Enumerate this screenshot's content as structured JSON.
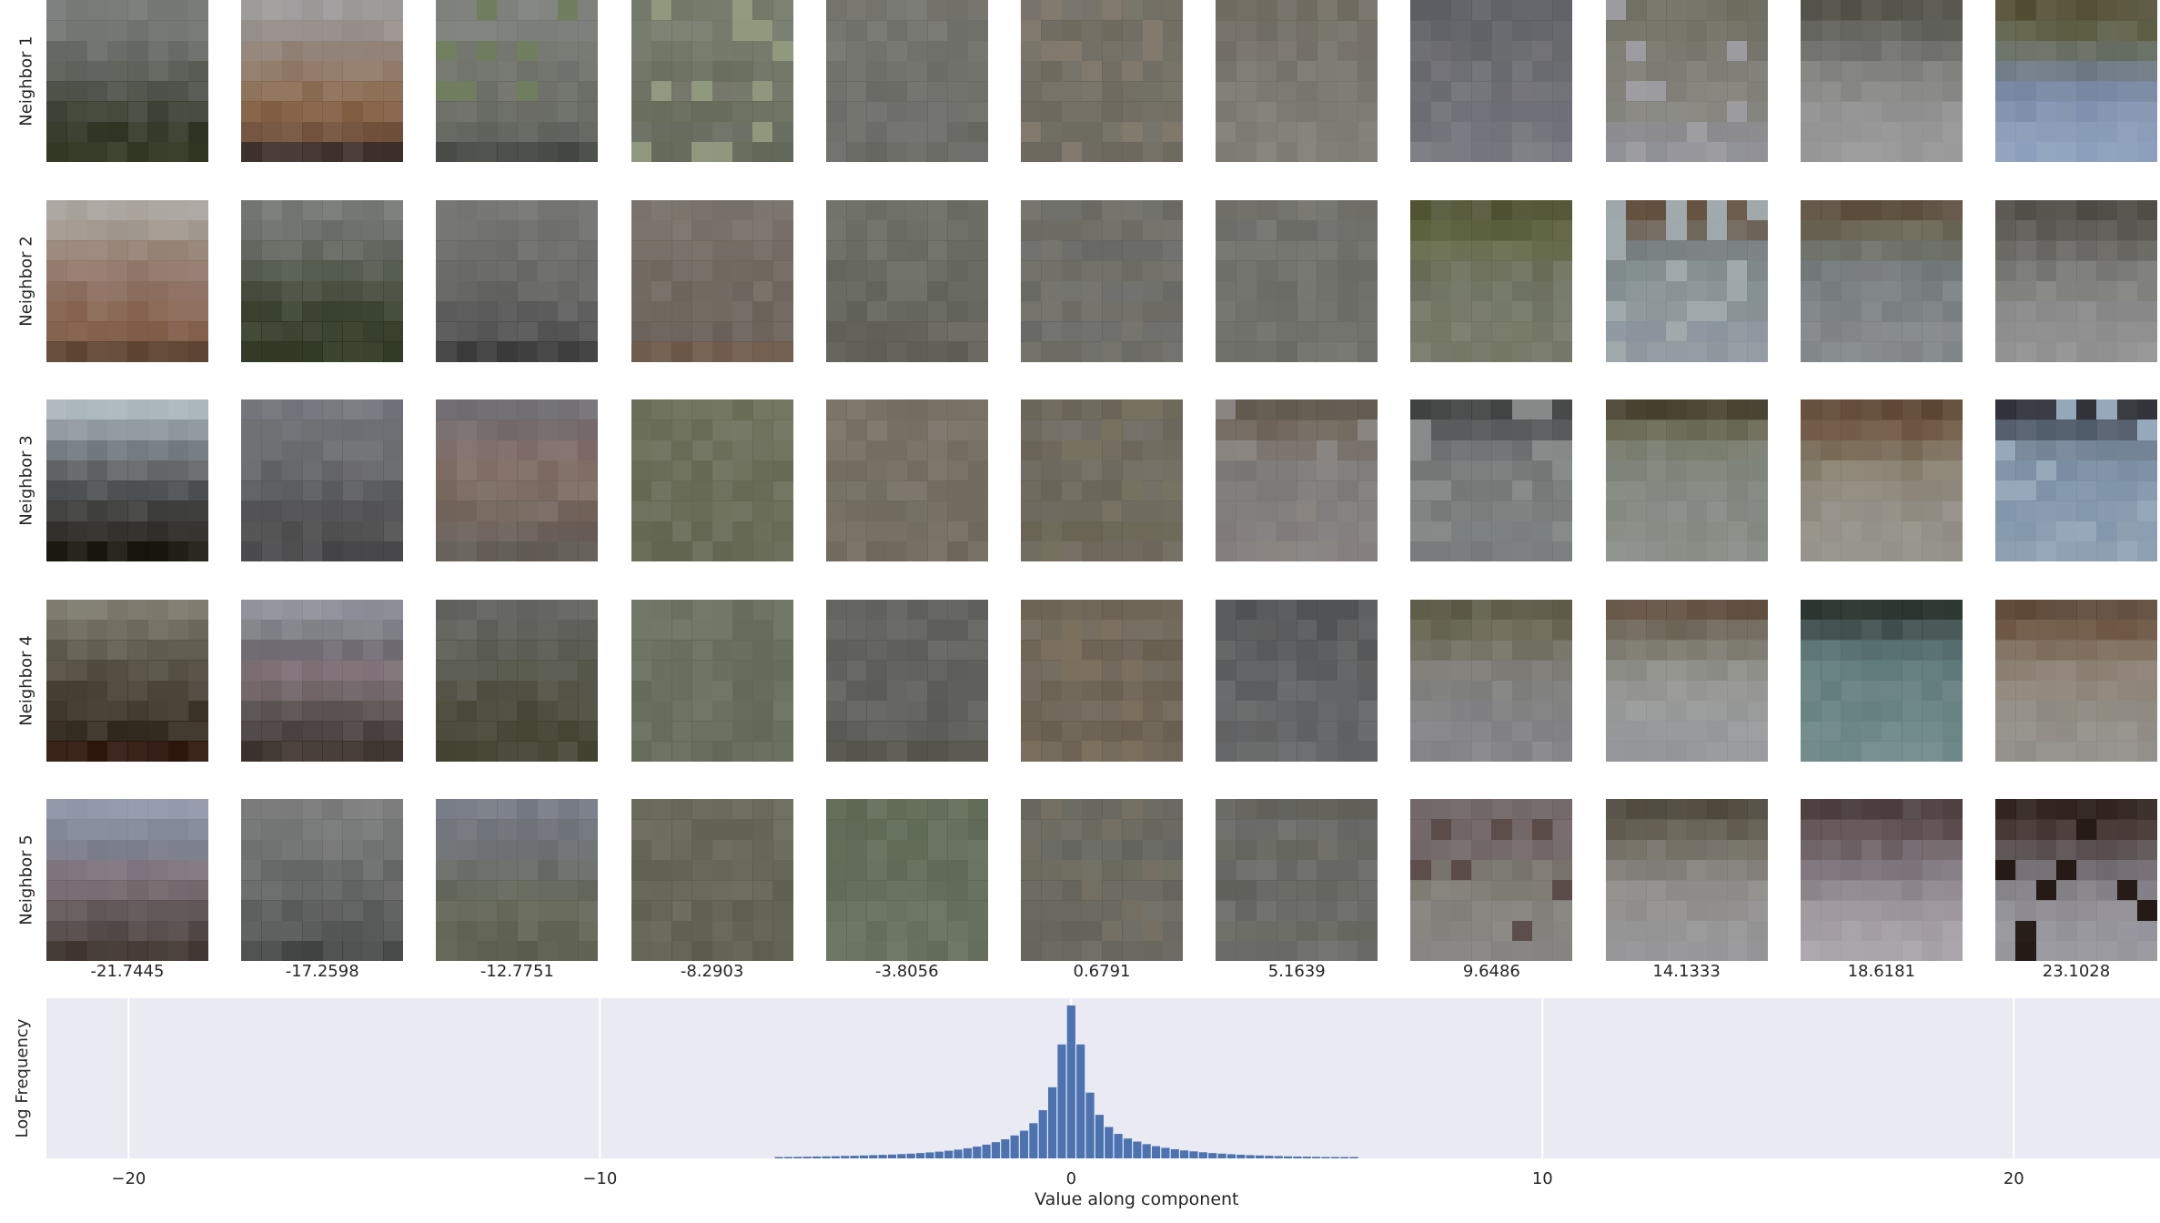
{
  "neighbors": {
    "row_labels": [
      "Neighbor 1",
      "Neighbor 2",
      "Neighbor 3",
      "Neighbor 4",
      "Neighbor 5"
    ],
    "column_values": [
      "-21.7445",
      "-17.2598",
      "-12.7751",
      "-8.2903",
      "-3.8056",
      "0.6791",
      "5.1639",
      "9.6486",
      "14.1333",
      "18.6181",
      "23.1028"
    ],
    "tiles": [
      [
        {
          "rows": [
            "#727673",
            "#6c716d",
            "#636762",
            "#575b54",
            "#4a4e45",
            "#3c4033",
            "#2f3422",
            "#2b311c"
          ]
        },
        {
          "rows": [
            "#9a9897",
            "#958d89",
            "#8f7f74",
            "#8c7462",
            "#88694f",
            "#805c40",
            "#6f4e37",
            "#3a2c27"
          ]
        },
        {
          "rows": [
            "#7a7c77",
            "#767873",
            "#71746d",
            "#6c6f68",
            "#686b63",
            "#62655d",
            "#5b5e57",
            "#3e423c"
          ],
          "noise": "#6f7d5e"
        },
        {
          "rows": [
            "#6f7563",
            "#727868",
            "#6b7060",
            "#666b5b",
            "#6a6e5f",
            "#646957",
            "#62685a",
            "#5f6555"
          ],
          "noise": "#8f977d"
        },
        {
          "rows": [
            "#707069",
            "#6e6e68",
            "#6c6d66",
            "#6b6c65",
            "#6a6a64",
            "#686963",
            "#676762",
            "#656560"
          ]
        },
        {
          "rows": [
            "#6e6a60",
            "#6b665a",
            "#6d695e",
            "#6a6559",
            "#6c685d",
            "#69655a",
            "#6b675c",
            "#686459"
          ],
          "noise": "#80786b"
        },
        {
          "rows": [
            "#6f6a60",
            "#6e6a61",
            "#726e66",
            "#747169",
            "#76736b",
            "#79766e",
            "#7b7870",
            "#7d7a72"
          ]
        },
        {
          "rows": [
            "#5c5d63",
            "#606167",
            "#646569",
            "#67686e",
            "#6a6b71",
            "#6c6d74",
            "#6f7077",
            "#72737a"
          ]
        },
        {
          "rows": [
            "#6a6a5d",
            "#6e6e62",
            "#727268",
            "#78786f",
            "#7d7d75",
            "#82827b",
            "#88888a",
            "#8c8c93"
          ],
          "noise": "#9c9ca0"
        },
        {
          "rows": [
            "#4e4d44",
            "#5e5e58",
            "#6c6c68",
            "#7a7a77",
            "#858584",
            "#8d8d8d",
            "#929292",
            "#959595"
          ]
        },
        {
          "rows": [
            "#514d33",
            "#585b40",
            "#60675c",
            "#6a7581",
            "#7585a0",
            "#7e90ad",
            "#8699b6",
            "#8b9fbc"
          ]
        }
      ],
      [
        {
          "rows": [
            "#a7a19a",
            "#9e948b",
            "#937f72",
            "#8e7466",
            "#896a5a",
            "#85624f",
            "#7f5a45",
            "#5c4330"
          ]
        },
        {
          "rows": [
            "#6f7471",
            "#676c66",
            "#5d635a",
            "#50574b",
            "#434a3a",
            "#37402c",
            "#2e3722",
            "#2a331d"
          ]
        },
        {
          "rows": [
            "#71716f",
            "#6d6d6b",
            "#686867",
            "#636362",
            "#5e5e5d",
            "#585858",
            "#4f4f4f",
            "#393939"
          ]
        },
        {
          "rows": [
            "#756e66",
            "#736b63",
            "#706860",
            "#6e665d",
            "#6c645b",
            "#6a6259",
            "#686058",
            "#6a5646"
          ]
        },
        {
          "rows": [
            "#68695f",
            "#66675d",
            "#65665c",
            "#63645a",
            "#626358",
            "#606157",
            "#5f5f55",
            "#5d5d53"
          ]
        },
        {
          "rows": [
            "#66665f",
            "#68685f",
            "#646560",
            "#696960",
            "#656660",
            "#686860",
            "#656561",
            "#676760"
          ],
          "noise": "#74746c"
        },
        {
          "rows": [
            "#6d6d66",
            "#6a6b65",
            "#6c6c66",
            "#696a64",
            "#6b6b65",
            "#6a6a64",
            "#6c6c66",
            "#6b6b65"
          ]
        },
        {
          "rows": [
            "#4d5130",
            "#575c38",
            "#626747",
            "#676b55",
            "#6a6e5b",
            "#6e725f",
            "#717461",
            "#727562"
          ]
        },
        {
          "rows": [
            "#5e4a38",
            "#6a6054",
            "#737a7b",
            "#7c8788",
            "#828d90",
            "#858f92",
            "#89929b",
            "#8c949b"
          ],
          "noise": "#9ea8ab"
        },
        {
          "rows": [
            "#5a4b3a",
            "#65604f",
            "#6b6d66",
            "#707576",
            "#757b7d",
            "#787e80",
            "#7c8184",
            "#7f8487"
          ]
        },
        {
          "rows": [
            "#4c4942",
            "#56554f",
            "#65645f",
            "#73736f",
            "#7f7f7c",
            "#868686",
            "#8b8b8b",
            "#8e8e8e"
          ]
        }
      ],
      [
        {
          "rows": [
            "#a9b4bb",
            "#8d969d",
            "#6f777d",
            "#5d6164",
            "#4a4d4f",
            "#3b3c3a",
            "#2c2b25",
            "#121208"
          ]
        },
        {
          "rows": [
            "#6e7077",
            "#6a6c71",
            "#65676a",
            "#5f6062",
            "#58595b",
            "#525254",
            "#4b4b4c",
            "#444446"
          ]
        },
        {
          "rows": [
            "#6d6b70",
            "#716769",
            "#7a6763",
            "#7b685f",
            "#77665c",
            "#6f6158",
            "#675c55",
            "#5d5650"
          ]
        },
        {
          "rows": [
            "#686c55",
            "#676b55",
            "#666a54",
            "#656953",
            "#646852",
            "#636751",
            "#626650",
            "#61654f"
          ]
        },
        {
          "rows": [
            "#726b5f",
            "#736c60",
            "#726b5f",
            "#716a5e",
            "#706a5e",
            "#6f695d",
            "#6e685c",
            "#6d675b"
          ]
        },
        {
          "rows": [
            "#645f50",
            "#69645a",
            "#655f52",
            "#6b665b",
            "#666255",
            "#6a6559",
            "#65604f",
            "#686355"
          ],
          "noise": "#76705f"
        },
        {
          "rows": [
            "#5c5449",
            "#6a6056",
            "#746c65",
            "#777371",
            "#7a7674",
            "#7b7776",
            "#7d7877",
            "#7f7a78"
          ],
          "noise": "#898480"
        },
        {
          "rows": [
            "#3a3c3c",
            "#545758",
            "#686b6c",
            "#6f7372",
            "#717574",
            "#737775",
            "#737878",
            "#717575"
          ],
          "noise": "#858a88"
        },
        {
          "rows": [
            "#473f2d",
            "#65644f",
            "#767a6c",
            "#7c8177",
            "#7f847c",
            "#81867f",
            "#838880",
            "#858a83"
          ]
        },
        {
          "rows": [
            "#5b4430",
            "#6c5440",
            "#786956",
            "#857c6b",
            "#8c8578",
            "#8e897f",
            "#908c83",
            "#918e86"
          ]
        },
        {
          "rows": [
            "#2a2c33",
            "#4d5867",
            "#6f8093",
            "#768aa0",
            "#7b90a6",
            "#7e93a9",
            "#8196aa",
            "#8499ac"
          ],
          "noise": "#94a8ba"
        }
      ],
      [
        {
          "rows": [
            "#7a7769",
            "#6a6658",
            "#5c5849",
            "#4f4a3b",
            "#433d2f",
            "#3a3225",
            "#30271b",
            "#2a1208"
          ]
        },
        {
          "rows": [
            "#8a8c96",
            "#7c7c84",
            "#6e6a71",
            "#7a6b71",
            "#6b5f62",
            "#574e4e",
            "#473f3d",
            "#3a302b"
          ]
        },
        {
          "rows": [
            "#5f605b",
            "#5a5b54",
            "#55564d",
            "#505145",
            "#4b4c3e",
            "#464737",
            "#424331",
            "#3e3f2c"
          ]
        },
        {
          "rows": [
            "#646b58",
            "#646b58",
            "#636a57",
            "#636a57",
            "#626956",
            "#626956",
            "#616855",
            "#606754"
          ]
        },
        {
          "rows": [
            "#5e5e5b",
            "#5d5d5a",
            "#5c5c59",
            "#5b5b58",
            "#5a5a57",
            "#595956",
            "#585855",
            "#505048"
          ]
        },
        {
          "rows": [
            "#665c4d",
            "#6a6152",
            "#645a4b",
            "#6b6254",
            "#655b4c",
            "#6a6052",
            "#645a4b",
            "#695f50"
          ],
          "noise": "#7a6e5c"
        },
        {
          "rows": [
            "#4f5051",
            "#525354",
            "#555657",
            "#58595a",
            "#5b5c5d",
            "#5d5e5f",
            "#5f6061",
            "#606162"
          ]
        },
        {
          "rows": [
            "#5b5944",
            "#65634e",
            "#6f6e60",
            "#777670",
            "#7b7b7a",
            "#7e7e80",
            "#7f7f83",
            "#808085"
          ]
        },
        {
          "rows": [
            "#5c4a3a",
            "#6b6354",
            "#7c7a6f",
            "#8a8a84",
            "#929390",
            "#949595",
            "#939597",
            "#919397"
          ]
        },
        {
          "rows": [
            "#243029",
            "#3b4d4b",
            "#526b6c",
            "#5d7878",
            "#637d7e",
            "#658080",
            "#678282",
            "#6a8485"
          ]
        },
        {
          "rows": [
            "#5b4534",
            "#6d5643",
            "#7c6b5a",
            "#877b6d",
            "#8b8276",
            "#8c877e",
            "#8e8a83",
            "#8f8c87"
          ]
        }
      ],
      [
        {
          "rows": [
            "#8d94a6",
            "#828898",
            "#777b88",
            "#7a6f7a",
            "#6f6268",
            "#5d5254",
            "#4c4240",
            "#3c312b"
          ]
        },
        {
          "rows": [
            "#777877",
            "#717272",
            "#6b6c6c",
            "#646565",
            "#5e5f5f",
            "#575858",
            "#505151",
            "#414242"
          ]
        },
        {
          "rows": [
            "#707580",
            "#6c7077",
            "#676a6c",
            "#636661",
            "#616458",
            "#5f6253",
            "#5c5f4f",
            "#595c4c"
          ]
        },
        {
          "rows": [
            "#626252",
            "#626252",
            "#616151",
            "#606050",
            "#5f5f4f",
            "#5e5e4e",
            "#5d5d4d",
            "#5c5c4c"
          ]
        },
        {
          "rows": [
            "#5b6650",
            "#5c6752",
            "#5e6853",
            "#5e6854",
            "#5f6955",
            "#5f6955",
            "#606a56",
            "#616b57"
          ]
        },
        {
          "rows": [
            "#5f5e56",
            "#646359",
            "#60605a",
            "#666558",
            "#616058",
            "#65645a",
            "#605f57",
            "#636259"
          ],
          "noise": "#726f62"
        },
        {
          "rows": [
            "#5e5e57",
            "#646560",
            "#606159",
            "#666762",
            "#5f605a",
            "#656661",
            "#616259",
            "#676863"
          ]
        },
        {
          "rows": [
            "#6e6363",
            "#6c5f60",
            "#6e6362",
            "#747068",
            "#7b7870",
            "#7e7c76",
            "#807e79",
            "#817f7c"
          ],
          "noise": "#5a4a48"
        },
        {
          "rows": [
            "#4c463b",
            "#605b4e",
            "#726e64",
            "#807c77",
            "#8a8784",
            "#8f8d8c",
            "#929192",
            "#939396"
          ]
        },
        {
          "rows": [
            "#4a3c3c",
            "#5a4a4d",
            "#6a5e63",
            "#7b7279",
            "#8b8489",
            "#979095",
            "#a09a9f",
            "#a6a1a7"
          ]
        },
        {
          "rows": [
            "#2c1f1b",
            "#3e302d",
            "#544a4c",
            "#6b646a",
            "#7e7b82",
            "#8a878f",
            "#918f97",
            "#95939a"
          ],
          "noise": "#241915"
        }
      ]
    ]
  },
  "chart_data": {
    "type": "bar",
    "xlabel": "Value along component",
    "ylabel": "Log Frequency",
    "xlim": [
      -21.7445,
      23.1028
    ],
    "xticks": [
      "−20",
      "−10",
      "0",
      "10",
      "20"
    ],
    "xtick_values": [
      -20,
      -10,
      0,
      10,
      20
    ],
    "grid": true,
    "bar_color": "#4c72b0",
    "background": "#eaeaf2",
    "bin_width": 0.2,
    "bins": [
      {
        "x": -6.2,
        "y": 0.008
      },
      {
        "x": -6.0,
        "y": 0.009
      },
      {
        "x": -5.8,
        "y": 0.01
      },
      {
        "x": -5.6,
        "y": 0.011
      },
      {
        "x": -5.4,
        "y": 0.012
      },
      {
        "x": -5.2,
        "y": 0.013
      },
      {
        "x": -5.0,
        "y": 0.014
      },
      {
        "x": -4.8,
        "y": 0.016
      },
      {
        "x": -4.6,
        "y": 0.017
      },
      {
        "x": -4.4,
        "y": 0.019
      },
      {
        "x": -4.2,
        "y": 0.021
      },
      {
        "x": -4.0,
        "y": 0.023
      },
      {
        "x": -3.8,
        "y": 0.025
      },
      {
        "x": -3.6,
        "y": 0.028
      },
      {
        "x": -3.4,
        "y": 0.031
      },
      {
        "x": -3.2,
        "y": 0.035
      },
      {
        "x": -3.0,
        "y": 0.039
      },
      {
        "x": -2.8,
        "y": 0.044
      },
      {
        "x": -2.6,
        "y": 0.05
      },
      {
        "x": -2.4,
        "y": 0.057
      },
      {
        "x": -2.2,
        "y": 0.066
      },
      {
        "x": -2.0,
        "y": 0.077
      },
      {
        "x": -1.8,
        "y": 0.09
      },
      {
        "x": -1.6,
        "y": 0.106
      },
      {
        "x": -1.4,
        "y": 0.125
      },
      {
        "x": -1.2,
        "y": 0.15
      },
      {
        "x": -1.0,
        "y": 0.181
      },
      {
        "x": -0.8,
        "y": 0.23
      },
      {
        "x": -0.6,
        "y": 0.315
      },
      {
        "x": -0.4,
        "y": 0.465
      },
      {
        "x": -0.2,
        "y": 0.745
      },
      {
        "x": 0.0,
        "y": 1.0
      },
      {
        "x": 0.2,
        "y": 0.745
      },
      {
        "x": 0.4,
        "y": 0.43
      },
      {
        "x": 0.6,
        "y": 0.285
      },
      {
        "x": 0.8,
        "y": 0.205
      },
      {
        "x": 1.0,
        "y": 0.16
      },
      {
        "x": 1.2,
        "y": 0.13
      },
      {
        "x": 1.4,
        "y": 0.11
      },
      {
        "x": 1.6,
        "y": 0.093
      },
      {
        "x": 1.8,
        "y": 0.08
      },
      {
        "x": 2.0,
        "y": 0.069
      },
      {
        "x": 2.2,
        "y": 0.06
      },
      {
        "x": 2.4,
        "y": 0.052
      },
      {
        "x": 2.6,
        "y": 0.046
      },
      {
        "x": 2.8,
        "y": 0.04
      },
      {
        "x": 3.0,
        "y": 0.035
      },
      {
        "x": 3.2,
        "y": 0.031
      },
      {
        "x": 3.4,
        "y": 0.027
      },
      {
        "x": 3.6,
        "y": 0.024
      },
      {
        "x": 3.8,
        "y": 0.021
      },
      {
        "x": 4.0,
        "y": 0.019
      },
      {
        "x": 4.2,
        "y": 0.017
      },
      {
        "x": 4.4,
        "y": 0.015
      },
      {
        "x": 4.6,
        "y": 0.013
      },
      {
        "x": 4.8,
        "y": 0.012
      },
      {
        "x": 5.0,
        "y": 0.011
      },
      {
        "x": 5.2,
        "y": 0.01
      },
      {
        "x": 5.4,
        "y": 0.009
      },
      {
        "x": 5.6,
        "y": 0.008
      },
      {
        "x": 5.8,
        "y": 0.007
      },
      {
        "x": 6.0,
        "y": 0.006
      }
    ]
  }
}
